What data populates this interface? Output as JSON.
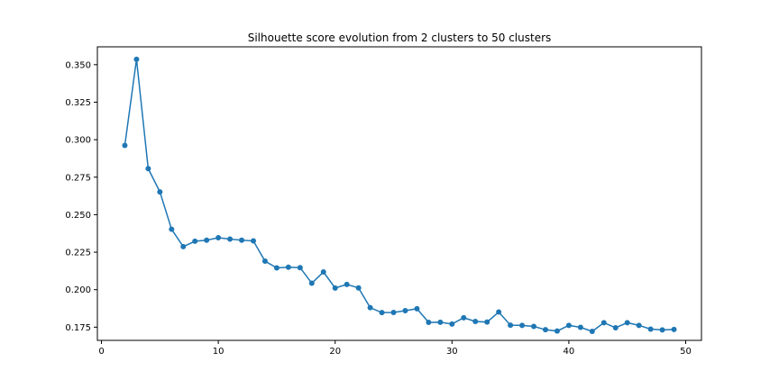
{
  "chart_data": {
    "type": "line",
    "title": "Silhouette score evolution from 2 clusters to 50 clusters",
    "xlabel": "",
    "ylabel": "",
    "xlim": [
      -0.35,
      51.35
    ],
    "ylim": [
      0.1662,
      0.3619
    ],
    "xticks": [
      0,
      10,
      20,
      30,
      40,
      50
    ],
    "yticks": [
      0.175,
      0.2,
      0.225,
      0.25,
      0.275,
      0.3,
      0.325,
      0.35
    ],
    "ytick_labels": [
      "0.175",
      "0.200",
      "0.225",
      "0.250",
      "0.275",
      "0.300",
      "0.325",
      "0.350"
    ],
    "grid": false,
    "color": "#1f77b4",
    "series": [
      {
        "x": [
          2,
          3,
          4,
          5,
          6,
          7,
          8,
          9,
          10,
          11,
          12,
          13,
          14,
          15,
          16,
          17,
          18,
          19,
          20,
          21,
          22,
          23,
          24,
          25,
          26,
          27,
          28,
          29,
          30,
          31,
          32,
          33,
          34,
          35,
          36,
          37,
          38,
          39,
          40,
          41,
          42,
          43,
          44,
          45,
          46,
          47,
          48,
          49
        ],
        "values": [
          0.2962,
          0.3536,
          0.2807,
          0.2652,
          0.2403,
          0.2287,
          0.2323,
          0.233,
          0.2346,
          0.2337,
          0.233,
          0.2325,
          0.219,
          0.2145,
          0.215,
          0.2147,
          0.2043,
          0.2118,
          0.2011,
          0.2035,
          0.2012,
          0.188,
          0.1847,
          0.1848,
          0.186,
          0.1873,
          0.1782,
          0.1783,
          0.1771,
          0.1813,
          0.1788,
          0.1784,
          0.1851,
          0.1763,
          0.1762,
          0.1755,
          0.1733,
          0.1724,
          0.1762,
          0.1749,
          0.1722,
          0.178,
          0.1746,
          0.178,
          0.1762,
          0.1737,
          0.1732,
          0.1735
        ]
      }
    ]
  }
}
